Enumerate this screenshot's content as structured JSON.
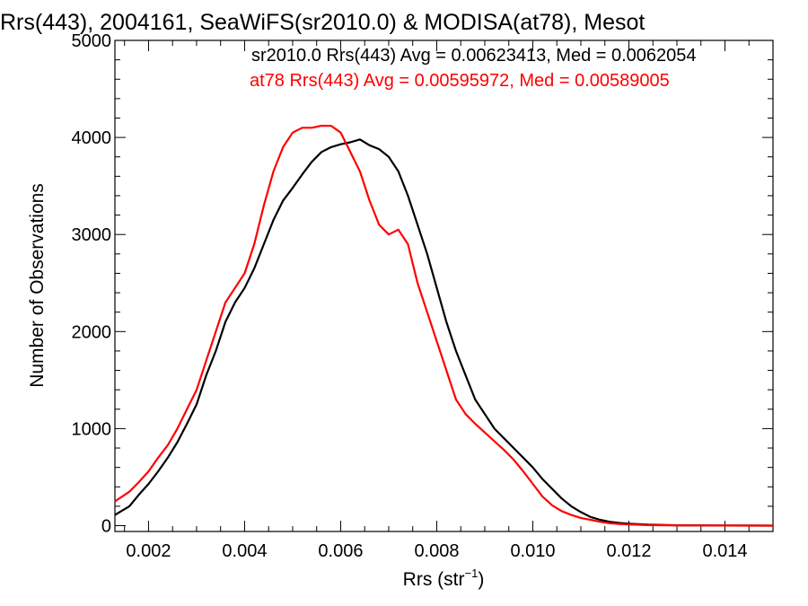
{
  "chart_data": {
    "type": "line",
    "title": "Rrs(443), 2004161, SeaWiFS(sr2010.0) & MODISA(at78), Mesot",
    "xlabel": "Rrs (str",
    "xlabel_sup": "−1",
    "xlabel_close": ")",
    "ylabel": "Number of Observations",
    "xlim": [
      0.0013,
      0.015
    ],
    "ylim": [
      -60,
      5000
    ],
    "x_ticks": [
      0.002,
      0.004,
      0.006,
      0.008,
      0.01,
      0.012,
      0.014
    ],
    "x_tick_labels": [
      "0.002",
      "0.004",
      "0.006",
      "0.008",
      "0.010",
      "0.012",
      "0.014"
    ],
    "y_ticks": [
      0,
      1000,
      2000,
      3000,
      4000,
      5000
    ],
    "y_tick_labels": [
      "0",
      "1000",
      "2000",
      "3000",
      "4000",
      "5000"
    ],
    "grid": false,
    "legend_position": "top-right",
    "series": [
      {
        "legend": "sr2010.0 Rrs(443) Avg = 0.00623413, Med = 0.0062054",
        "color": "#000000",
        "x": [
          0.0013,
          0.0016,
          0.0018,
          0.002,
          0.0022,
          0.0024,
          0.0026,
          0.0028,
          0.003,
          0.0032,
          0.0034,
          0.0036,
          0.0038,
          0.004,
          0.0042,
          0.0044,
          0.0046,
          0.0048,
          0.005,
          0.0052,
          0.0054,
          0.0056,
          0.0058,
          0.006,
          0.0062,
          0.0064,
          0.0066,
          0.0068,
          0.007,
          0.0072,
          0.0074,
          0.0076,
          0.0078,
          0.008,
          0.0082,
          0.0084,
          0.0086,
          0.0088,
          0.009,
          0.0092,
          0.0094,
          0.0096,
          0.0098,
          0.01,
          0.0102,
          0.0104,
          0.0106,
          0.0108,
          0.011,
          0.0112,
          0.0114,
          0.0116,
          0.0118,
          0.012,
          0.0122,
          0.0124,
          0.0126,
          0.0128,
          0.013,
          0.0135,
          0.014,
          0.0145,
          0.015
        ],
        "y": [
          110,
          200,
          320,
          430,
          560,
          700,
          860,
          1050,
          1250,
          1550,
          1800,
          2100,
          2300,
          2450,
          2650,
          2900,
          3150,
          3350,
          3480,
          3620,
          3750,
          3850,
          3900,
          3930,
          3950,
          3980,
          3920,
          3880,
          3800,
          3650,
          3400,
          3100,
          2800,
          2450,
          2100,
          1800,
          1550,
          1300,
          1150,
          1000,
          900,
          800,
          700,
          600,
          480,
          380,
          280,
          200,
          140,
          90,
          60,
          40,
          28,
          20,
          15,
          10,
          8,
          6,
          4,
          3,
          2,
          1,
          0
        ]
      },
      {
        "legend": "at78 Rrs(443) Avg = 0.00595972, Med = 0.00589005",
        "color": "#ff0000",
        "x": [
          0.0013,
          0.0016,
          0.0018,
          0.002,
          0.0022,
          0.0024,
          0.0026,
          0.0028,
          0.003,
          0.0032,
          0.0034,
          0.0036,
          0.0038,
          0.004,
          0.0042,
          0.0044,
          0.0046,
          0.0048,
          0.005,
          0.0052,
          0.0054,
          0.0056,
          0.0058,
          0.006,
          0.0062,
          0.0064,
          0.0066,
          0.0068,
          0.007,
          0.0072,
          0.0074,
          0.0076,
          0.0078,
          0.008,
          0.0082,
          0.0084,
          0.0086,
          0.0088,
          0.009,
          0.0092,
          0.0094,
          0.0096,
          0.0098,
          0.01,
          0.0102,
          0.0104,
          0.0106,
          0.0108,
          0.011,
          0.0112,
          0.0114,
          0.0116,
          0.0118,
          0.012,
          0.0122,
          0.0124,
          0.0126,
          0.0128,
          0.013,
          0.0135,
          0.014,
          0.0145,
          0.015
        ],
        "y": [
          250,
          350,
          450,
          560,
          700,
          830,
          1000,
          1200,
          1400,
          1700,
          2000,
          2300,
          2450,
          2600,
          2900,
          3300,
          3650,
          3900,
          4050,
          4100,
          4100,
          4120,
          4120,
          4050,
          3850,
          3650,
          3350,
          3100,
          3000,
          3050,
          2900,
          2500,
          2200,
          1900,
          1600,
          1300,
          1150,
          1050,
          960,
          870,
          780,
          680,
          560,
          430,
          300,
          210,
          150,
          110,
          80,
          60,
          40,
          25,
          18,
          12,
          9,
          6,
          5,
          4,
          3,
          2,
          1,
          0,
          0
        ]
      }
    ]
  }
}
